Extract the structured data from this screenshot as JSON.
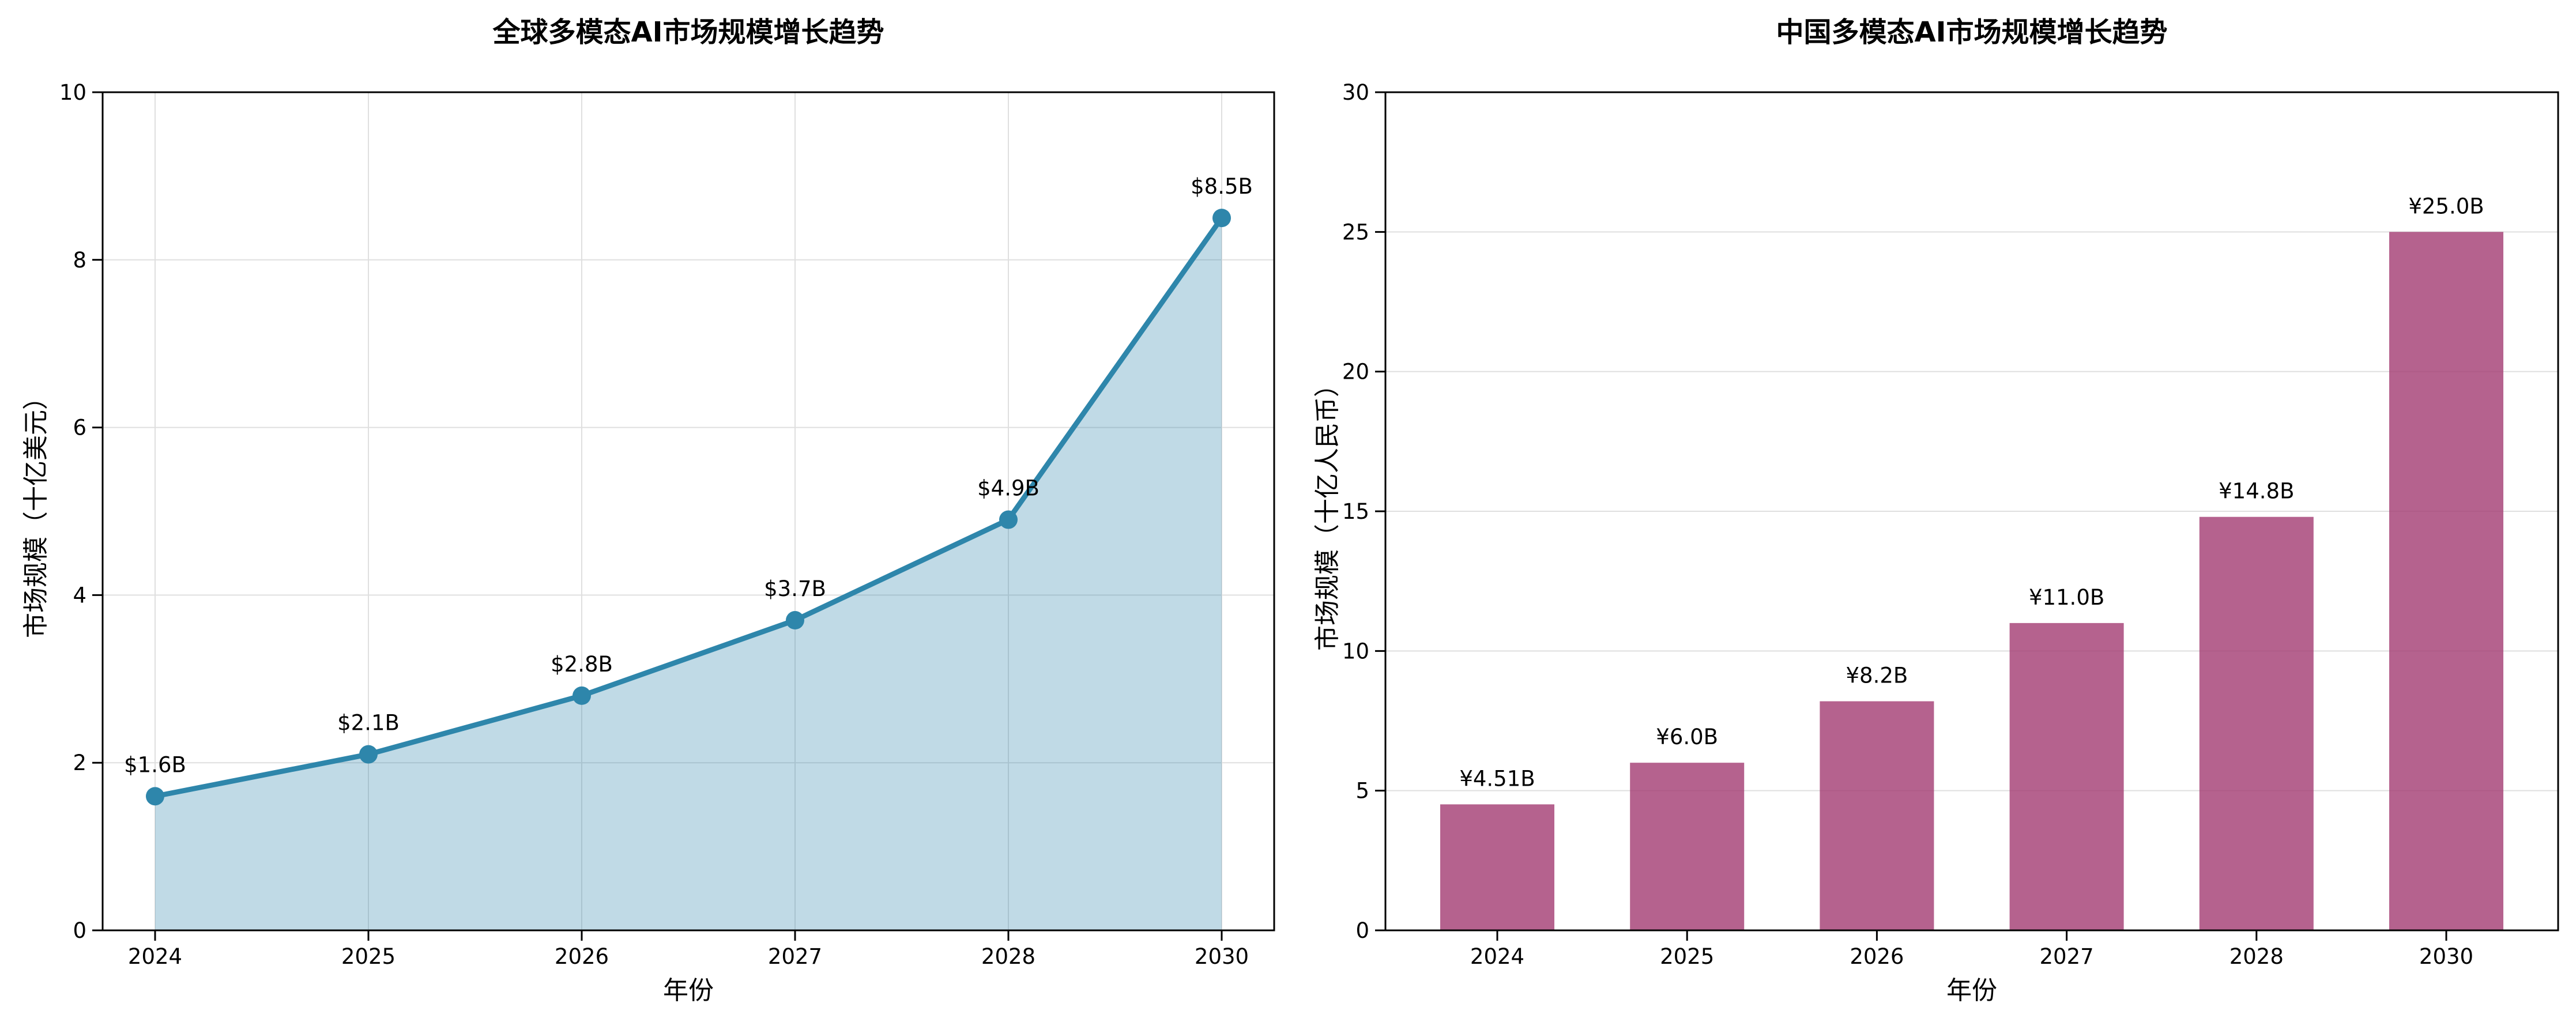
{
  "page": {
    "background": "#FFFFFF",
    "text_color": "#000000"
  },
  "chart_data": [
    {
      "type": "area",
      "title": "全球多模态AI市场规模增长趋势",
      "xlabel": "年份",
      "ylabel": "市场规模（十亿美元）",
      "categories": [
        "2024",
        "2025",
        "2026",
        "2027",
        "2028",
        "2030"
      ],
      "values": [
        1.6,
        2.1,
        2.8,
        3.7,
        4.9,
        8.5
      ],
      "data_labels": [
        "$1.6B",
        "$2.1B",
        "$2.8B",
        "$3.7B",
        "$4.9B",
        "$8.5B"
      ],
      "ylim": [
        0,
        10
      ],
      "yticks": [
        0,
        2,
        4,
        6,
        8,
        10
      ],
      "grid": "both",
      "legend": "none",
      "line_color": "#2E86AB",
      "marker_color": "#2E86AB",
      "fill_color": "#2E86AB",
      "fill_alpha": 0.3,
      "grid_color": "#DFDFDF",
      "spine_color": "#000000"
    },
    {
      "type": "bar",
      "title": "中国多模态AI市场规模增长趋势",
      "xlabel": "年份",
      "ylabel": "市场规模（十亿人民币）",
      "categories": [
        "2024",
        "2025",
        "2026",
        "2027",
        "2028",
        "2030"
      ],
      "values": [
        4.51,
        6.0,
        8.2,
        11.0,
        14.8,
        25.0
      ],
      "data_labels": [
        "¥4.51B",
        "¥6.0B",
        "¥8.2B",
        "¥11.0B",
        "¥14.8B",
        "¥25.0B"
      ],
      "ylim": [
        0,
        30
      ],
      "yticks": [
        0,
        5,
        10,
        15,
        20,
        25,
        30
      ],
      "grid": "y",
      "legend": "none",
      "bar_color": "#A23B72",
      "bar_alpha": 0.8,
      "grid_color": "#DFDFDF",
      "spine_color": "#000000"
    }
  ]
}
